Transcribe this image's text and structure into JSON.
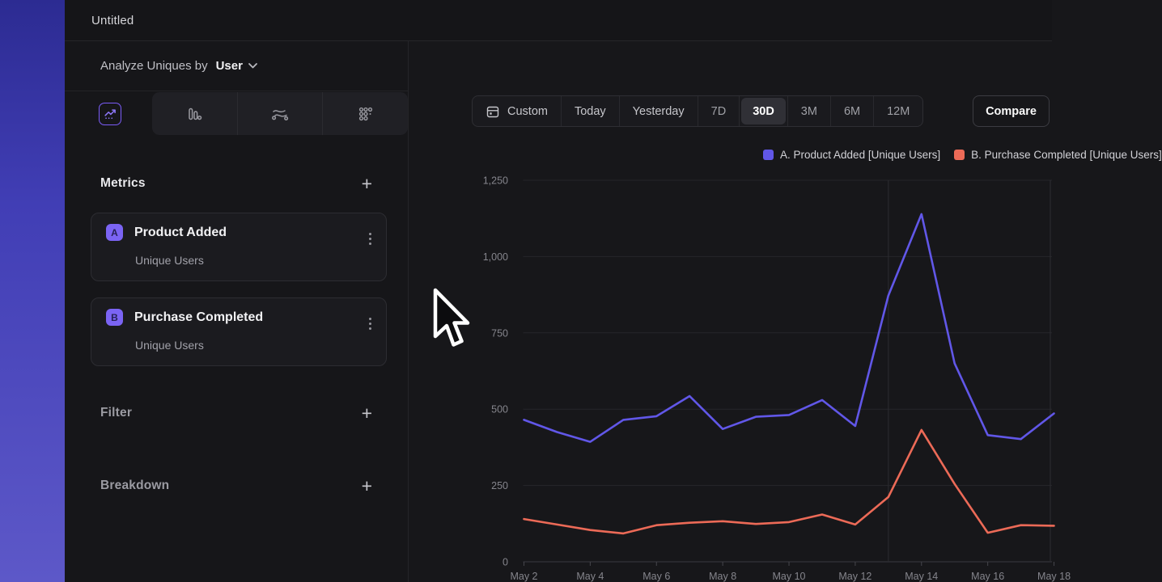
{
  "window": {
    "title": "Untitled"
  },
  "sidebar": {
    "analyze": {
      "label": "Analyze Uniques by",
      "value": "User"
    },
    "metrics": {
      "heading": "Metrics",
      "items": [
        {
          "badge": "A",
          "name": "Product Added",
          "subtitle": "Unique Users"
        },
        {
          "badge": "B",
          "name": "Purchase Completed",
          "subtitle": "Unique Users"
        }
      ]
    },
    "sections": [
      {
        "label": "Filter"
      },
      {
        "label": "Breakdown"
      }
    ],
    "chart_type_tabs": [
      "line-chart-icon",
      "bar-chart-icon",
      "flow-chart-icon",
      "grid-dots-icon"
    ],
    "active_chart_type": "line-chart-icon"
  },
  "toolbar": {
    "ranges": [
      "Custom",
      "Today",
      "Yesterday",
      "7D",
      "30D",
      "3M",
      "6M",
      "12M"
    ],
    "active_range": "30D",
    "compare_label": "Compare"
  },
  "icons": {
    "plus": "+",
    "chevron_down": "v",
    "kebab": "⋮",
    "calendar": "calendar-icon"
  },
  "colors": {
    "accent_purple": "#7b5cf8",
    "badge_purple": "#7b64f4",
    "series_a": "#6157e8",
    "series_b": "#ec6a57",
    "gradient_strip_top": "#2c2b92",
    "gradient_strip_bottom": "#5d58c8"
  },
  "chart_data": {
    "type": "line",
    "title": "",
    "xlabel": "",
    "ylabel": "",
    "x": [
      "May 2",
      "May 3",
      "May 4",
      "May 5",
      "May 6",
      "May 7",
      "May 8",
      "May 9",
      "May 10",
      "May 11",
      "May 12",
      "May 13",
      "May 14",
      "May 15",
      "May 16",
      "May 17",
      "May 18"
    ],
    "x_tick_labels": [
      "May 2",
      "May 4",
      "May 6",
      "May 8",
      "May 10",
      "May 12",
      "May 14",
      "May 16",
      "May 18"
    ],
    "series": [
      {
        "name": "A. Product Added [Unique Users]",
        "color": "#6157e8",
        "values": [
          465,
          425,
          393,
          465,
          477,
          543,
          435,
          475,
          481,
          530,
          445,
          872,
          1139,
          650,
          415,
          402,
          486
        ]
      },
      {
        "name": "B. Purchase Completed [Unique Users]",
        "color": "#ec6a57",
        "values": [
          140,
          122,
          104,
          93,
          120,
          128,
          133,
          124,
          130,
          155,
          122,
          212,
          432,
          255,
          95,
          120,
          118
        ]
      }
    ],
    "ylim": [
      0,
      1250
    ],
    "yticks": [
      "0",
      "250",
      "500",
      "750",
      "1,000",
      "1,250"
    ],
    "grid": "horizontal",
    "vertical_gridline_at": "May 13",
    "legend_position": "top-right"
  }
}
